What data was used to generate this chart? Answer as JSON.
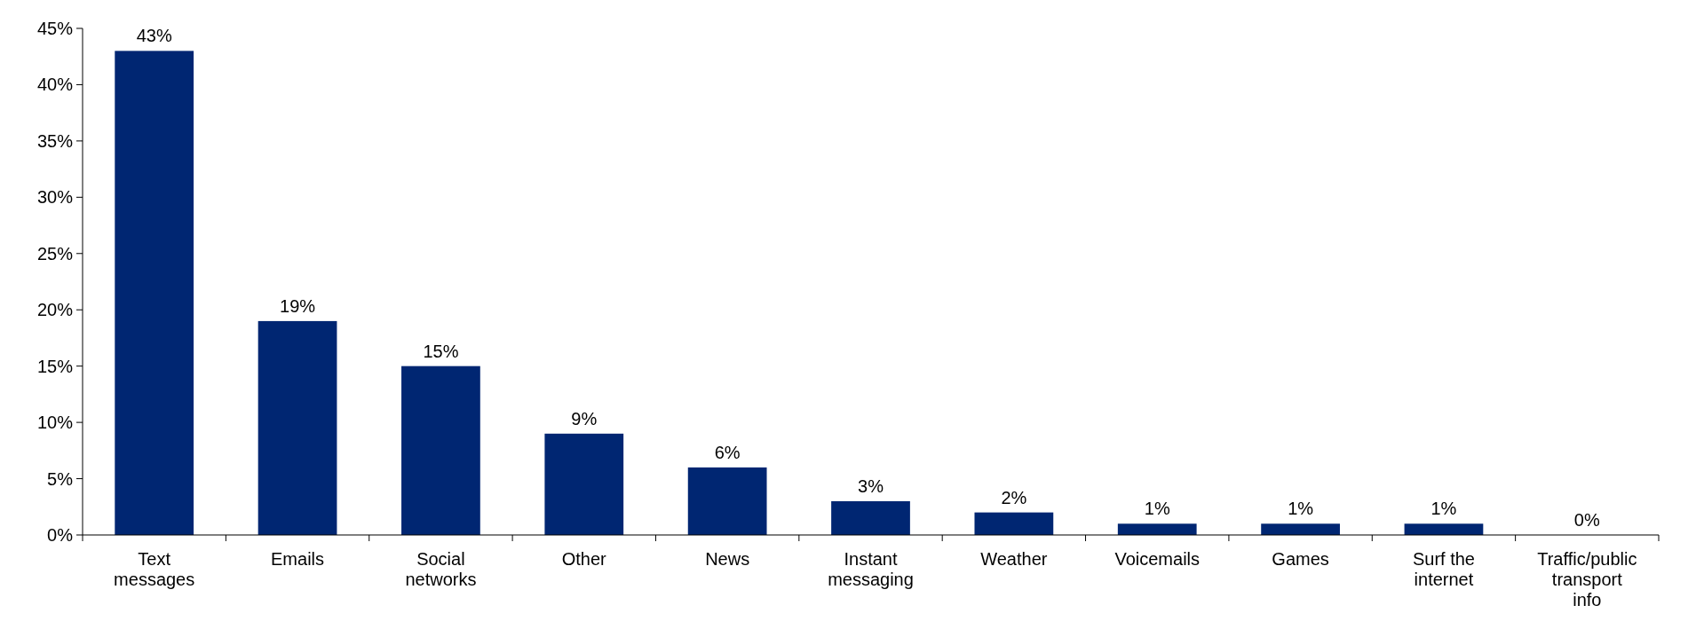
{
  "chart_data": {
    "type": "bar",
    "categories": [
      "Text messages",
      "Emails",
      "Social networks",
      "Other",
      "News",
      "Instant messaging",
      "Weather",
      "Voicemails",
      "Games",
      "Surf the internet",
      "Traffic/public transport info"
    ],
    "values": [
      43,
      19,
      15,
      9,
      6,
      3,
      2,
      1,
      1,
      1,
      0
    ],
    "color": "#002672",
    "ylim": [
      0,
      45
    ],
    "yticks": [
      {
        "value": 0,
        "label": "0%"
      },
      {
        "value": 5,
        "label": "5%"
      },
      {
        "value": 10,
        "label": "10%"
      },
      {
        "value": 15,
        "label": "15%"
      },
      {
        "value": 20,
        "label": "20%"
      },
      {
        "value": 25,
        "label": "25%"
      },
      {
        "value": 30,
        "label": "30%"
      },
      {
        "value": 35,
        "label": "35%"
      },
      {
        "value": 40,
        "label": "40%"
      },
      {
        "value": 45,
        "label": "45%"
      }
    ],
    "value_labels": [
      "43%",
      "19%",
      "15%",
      "9%",
      "6%",
      "3%",
      "2%",
      "1%",
      "1%",
      "1%",
      "0%"
    ],
    "grid": false
  }
}
